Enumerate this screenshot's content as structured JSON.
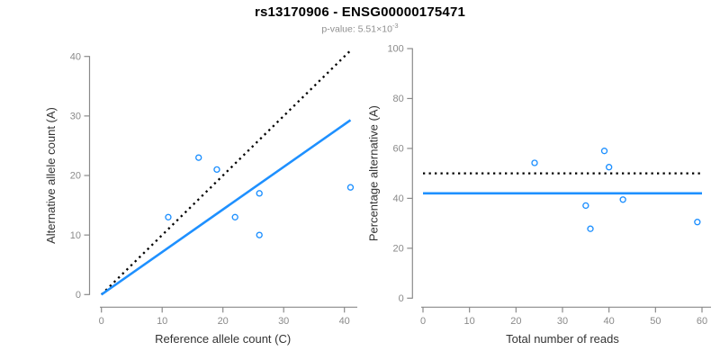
{
  "header": {
    "title": "rs13170906 - ENSG00000175471",
    "subtitle_prefix": "p-value: 5.51×10",
    "subtitle_exponent": "-3"
  },
  "colors": {
    "accent": "#1E90FF",
    "dotted_line": "#000000",
    "axis": "#8a8a8a",
    "tick_label": "#8a8a8a",
    "axis_title": "#333333",
    "title": "#000000",
    "subtitle": "#8f8f8f",
    "background": "#ffffff"
  },
  "chart_data": [
    {
      "type": "scatter",
      "panel": "left",
      "xlabel": "Reference allele count (C)",
      "ylabel": "Alternative allele count (A)",
      "xlim": [
        0,
        40
      ],
      "ylim": [
        0,
        40
      ],
      "xticks": [
        0,
        10,
        20,
        30,
        40
      ],
      "yticks": [
        0,
        10,
        20,
        30,
        40
      ],
      "grid": false,
      "legend": false,
      "points": [
        [
          16,
          23
        ],
        [
          19,
          21
        ],
        [
          11,
          13
        ],
        [
          22,
          13
        ],
        [
          26,
          17
        ],
        [
          26,
          10
        ],
        [
          41,
          18
        ]
      ],
      "lines": [
        {
          "name": "identity-line",
          "style": "dotted",
          "color": "#000000",
          "from": [
            0,
            0
          ],
          "to": [
            41,
            41
          ]
        },
        {
          "name": "fit-line",
          "style": "solid",
          "color": "#1E90FF",
          "from": [
            0,
            0
          ],
          "to": [
            41,
            29.3
          ]
        }
      ],
      "point_color": "#1E90FF"
    },
    {
      "type": "scatter",
      "panel": "right",
      "xlabel": "Total number of reads",
      "ylabel": "Percentage alternative (A)",
      "xlim": [
        0,
        60
      ],
      "ylim": [
        0,
        100
      ],
      "xticks": [
        0,
        10,
        20,
        30,
        40,
        50,
        60
      ],
      "yticks": [
        0,
        20,
        40,
        60,
        80,
        100
      ],
      "grid": false,
      "legend": false,
      "points": [
        [
          24,
          54.2
        ],
        [
          35,
          37.1
        ],
        [
          36,
          27.8
        ],
        [
          39,
          59
        ],
        [
          40,
          52.5
        ],
        [
          43,
          39.5
        ],
        [
          59,
          30.5
        ]
      ],
      "lines": [
        {
          "name": "null-line",
          "style": "dotted",
          "color": "#000000",
          "from": [
            0,
            50
          ],
          "to": [
            60,
            50
          ]
        },
        {
          "name": "mean-line",
          "style": "solid",
          "color": "#1E90FF",
          "from": [
            0,
            42
          ],
          "to": [
            60,
            42
          ]
        }
      ],
      "point_color": "#1E90FF"
    }
  ]
}
